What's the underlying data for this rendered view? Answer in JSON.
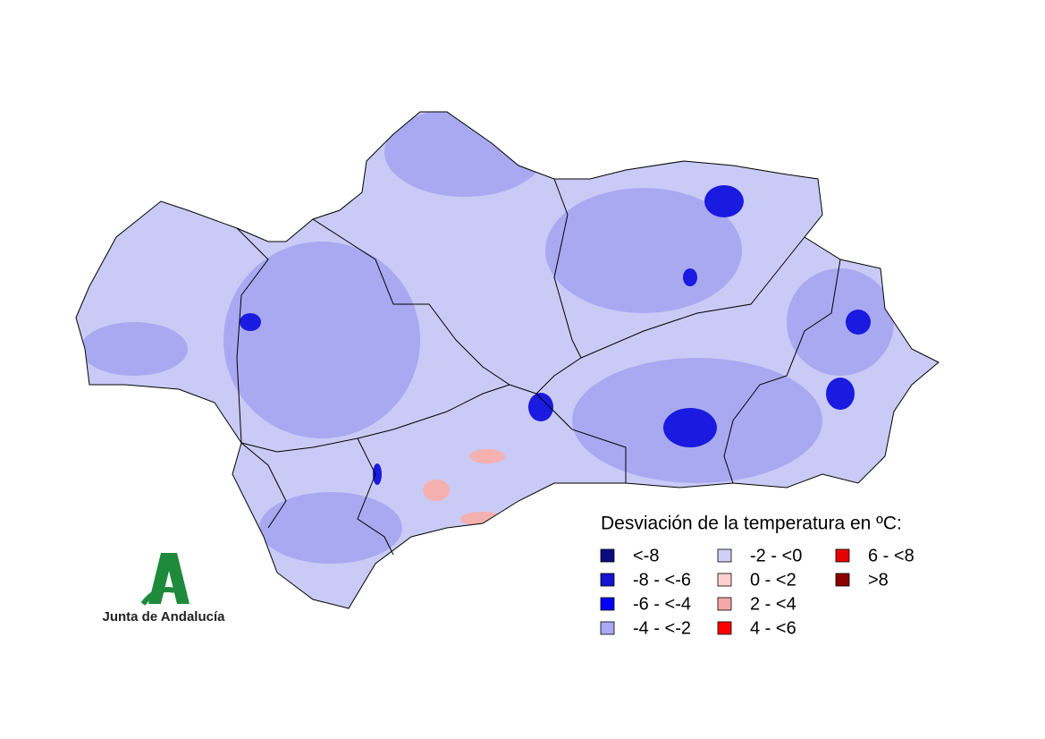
{
  "legend": {
    "title": "Desviación de la temperatura en ºC:",
    "items": [
      {
        "label": "<-8",
        "color": "#0b0b80"
      },
      {
        "label": "-8 - <-6",
        "color": "#1414d2"
      },
      {
        "label": "-6 - <-4",
        "color": "#0000ff"
      },
      {
        "label": "-4 - <-2",
        "color": "#a8a8f5"
      },
      {
        "label": "-2 - <0",
        "color": "#cfcff7"
      },
      {
        "label": "0 - <2",
        "color": "#ffcfcf"
      },
      {
        "label": "2 - <4",
        "color": "#f5a8a8"
      },
      {
        "label": "4 - <6",
        "color": "#ff0000"
      },
      {
        "label": "6 - <8",
        "color": "#e80000"
      },
      {
        "label": ">8",
        "color": "#8b0000"
      }
    ]
  },
  "logo": {
    "text": "Junta de Andalucía"
  }
}
